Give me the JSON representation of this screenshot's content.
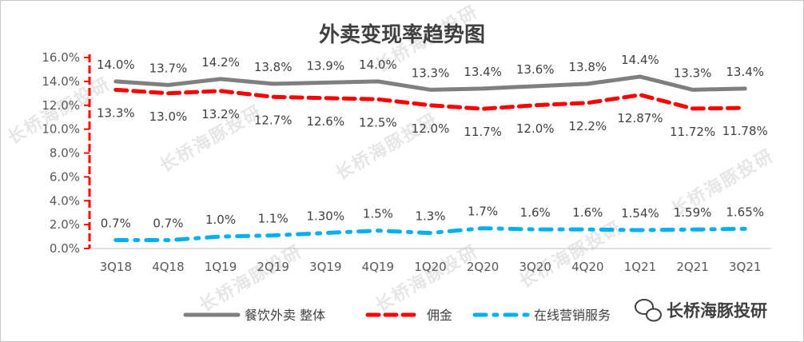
{
  "chart_data": {
    "type": "line",
    "title": "外卖变现率趋势图",
    "categories": [
      "3Q18",
      "4Q18",
      "1Q19",
      "2Q19",
      "3Q19",
      "4Q19",
      "1Q20",
      "2Q20",
      "3Q20",
      "4Q20",
      "1Q21",
      "2Q21",
      "3Q21"
    ],
    "ylim": [
      0,
      16
    ],
    "yticks": [
      "0.0%",
      "2.0%",
      "4.0%",
      "6.0%",
      "8.0%",
      "10.0%",
      "12.0%",
      "14.0%",
      "16.0%"
    ],
    "legend_position": "bottom",
    "series": [
      {
        "name": "餐饮外卖 整体",
        "values": [
          14.0,
          13.7,
          14.2,
          13.8,
          13.9,
          14.0,
          13.3,
          13.4,
          13.6,
          13.8,
          14.4,
          13.3,
          13.4
        ],
        "labels": [
          "14.0%",
          "13.7%",
          "14.2%",
          "13.8%",
          "13.9%",
          "14.0%",
          "13.3%",
          "13.4%",
          "13.6%",
          "13.8%",
          "14.4%",
          "13.3%",
          "13.4%"
        ],
        "color": "#7f7f7f",
        "style": "solid",
        "label_position": "above"
      },
      {
        "name": "佣金",
        "values": [
          13.3,
          13.0,
          13.2,
          12.7,
          12.6,
          12.5,
          12.0,
          11.7,
          12.0,
          12.2,
          12.87,
          11.72,
          11.78
        ],
        "labels": [
          "13.3%",
          "13.0%",
          "13.2%",
          "12.7%",
          "12.6%",
          "12.5%",
          "12.0%",
          "11.7%",
          "12.0%",
          "12.2%",
          "12.87%",
          "11.72%",
          "11.78%"
        ],
        "color": "#ff0000",
        "style": "dashed",
        "label_position": "below"
      },
      {
        "name": "在线营销服务",
        "values": [
          0.7,
          0.7,
          1.0,
          1.1,
          1.3,
          1.5,
          1.3,
          1.7,
          1.6,
          1.6,
          1.54,
          1.59,
          1.65
        ],
        "labels": [
          "0.7%",
          "0.7%",
          "1.0%",
          "1.1%",
          "1.30%",
          "1.5%",
          "1.3%",
          "1.7%",
          "1.6%",
          "1.6%",
          "1.54%",
          "1.59%",
          "1.65%"
        ],
        "color": "#00b0f0",
        "style": "dashdot",
        "label_position": "above"
      }
    ]
  },
  "watermark": {
    "text": "长桥海豚投研"
  },
  "brand": {
    "name": "长桥海豚投研",
    "icon": "wechat-icon"
  }
}
